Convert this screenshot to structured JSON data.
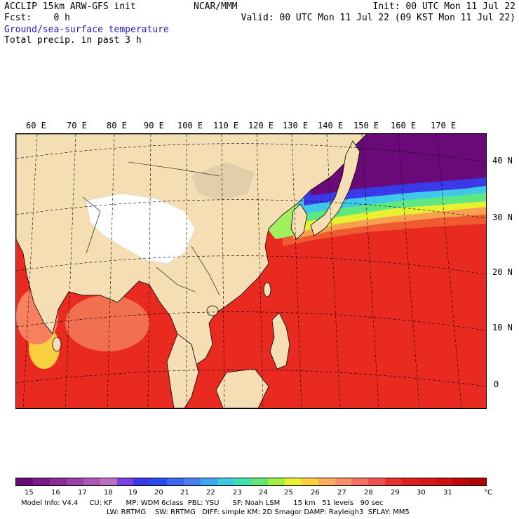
{
  "header": {
    "line1_left": "ACCLIP 15km ARW-GFS init",
    "line1_center": "NCAR/MMM",
    "line1_right": "Init: 00 UTC Mon 11 Jul 22",
    "line2_left": "Fcst:    0 h",
    "line2_right": "Valid: 00 UTC Mon 11 Jul 22 (09 KST Mon 11 Jul 22)",
    "line3": "Ground/sea-surface temperature",
    "line4": "Total precip. in past 3 h"
  },
  "map": {
    "lon_labels": [
      "60 E",
      "70 E",
      "80 E",
      "90 E",
      "100 E",
      "110 E",
      "120 E",
      "130 E",
      "140 E",
      "150 E",
      "160 E",
      "170 E"
    ],
    "lat_labels": [
      "40 N",
      "30 N",
      "20 N",
      "10 N",
      "0"
    ]
  },
  "colorbar": {
    "unit": "°C",
    "ticks": [
      "15",
      "16",
      "17",
      "18",
      "19",
      "20",
      "21",
      "22",
      "23",
      "24",
      "25",
      "26",
      "27",
      "28",
      "29",
      "30",
      "31"
    ],
    "colors": [
      "#6a0a78",
      "#7a1a88",
      "#8a2a96",
      "#9a40a6",
      "#aa58b4",
      "#b870c2",
      "#7a40e0",
      "#3a3ae8",
      "#2a4af0",
      "#3a66f0",
      "#4a80f0",
      "#40a8f0",
      "#40c8e0",
      "#40e0b0",
      "#60e870",
      "#a0f040",
      "#e8f030",
      "#f8d040",
      "#f8b060",
      "#f89070",
      "#f87060",
      "#f05050",
      "#e83030",
      "#e02020",
      "#d81818",
      "#d01010",
      "#c00808",
      "#b00000"
    ]
  },
  "model_info": {
    "line1": "Model Info: V4.4     CU: KF      MP: WDM 6class  PBL: YSU      SF: Noah LSM      15 km   51 levels   90 sec",
    "line2": "LW: RRTMG    SW: RRTMG   DIFF: simple KM: 2D Smagor DAMP: Rayleigh3  SFLAY: MM5"
  },
  "colors": {
    "land": "#f5deb3",
    "ocean_warm": "#e82a20",
    "title_blue": "#1a1acc"
  }
}
